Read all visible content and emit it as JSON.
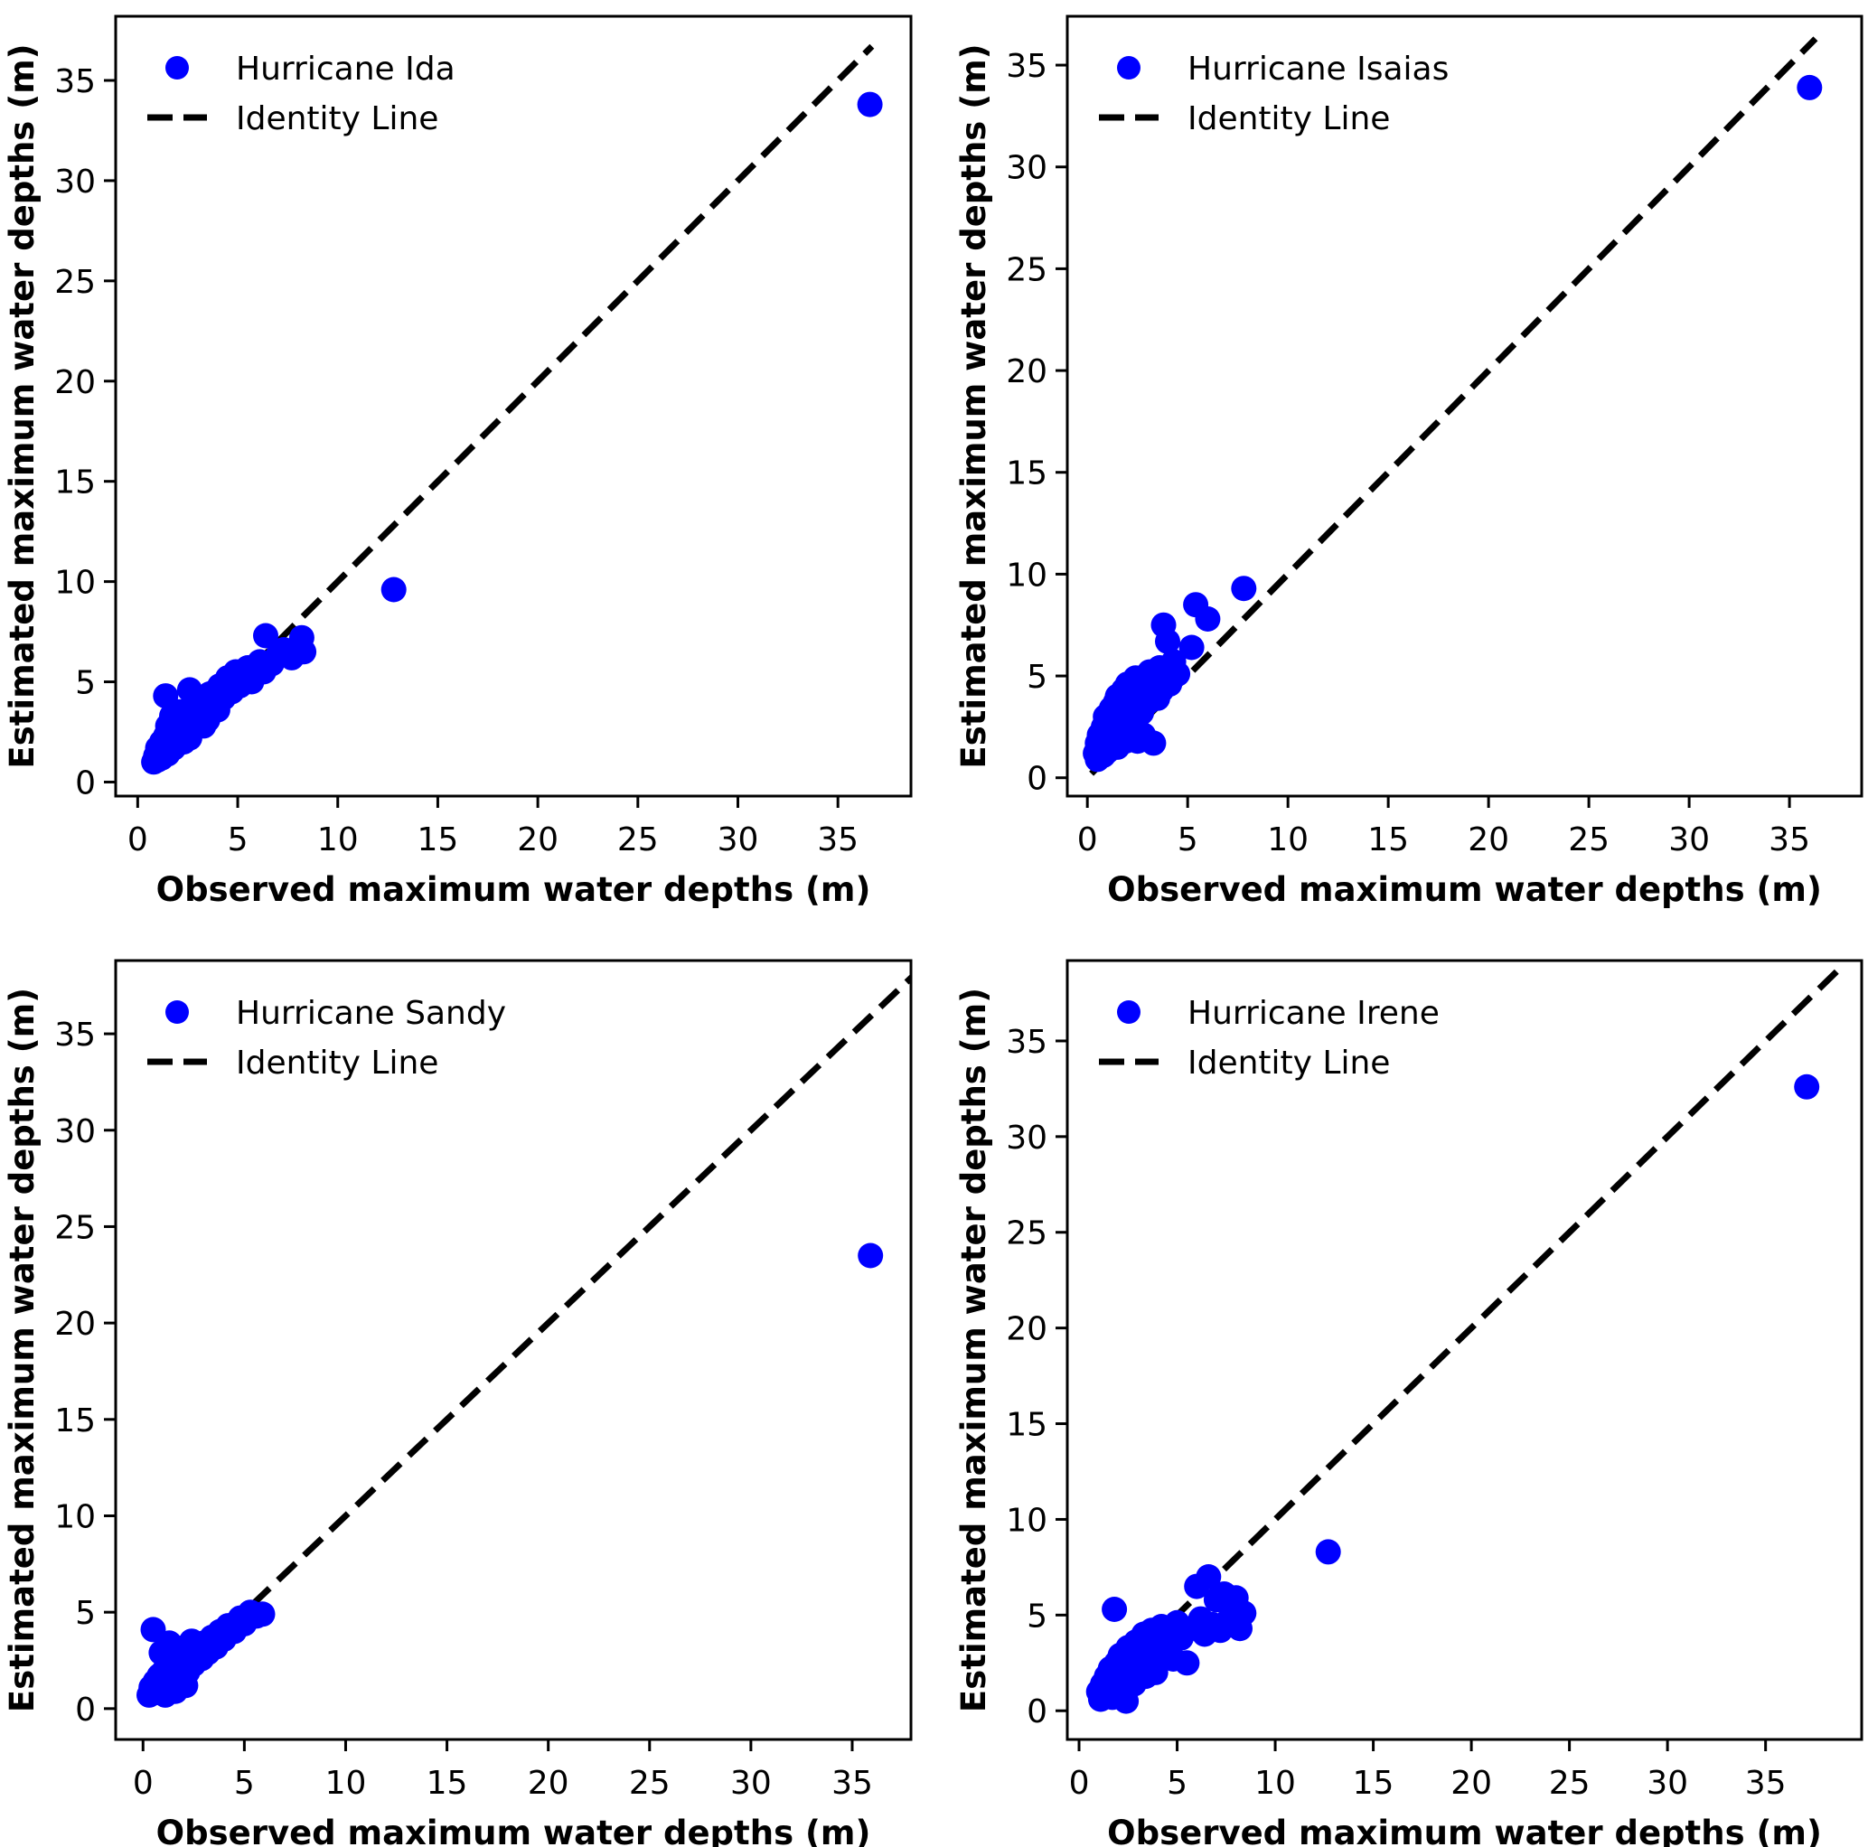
{
  "figure": {
    "background": "#ffffff",
    "marker_color": "#0000ff",
    "identity_color": "#000000",
    "xlabel": "Observed maximum water depths (m)",
    "ylabel": "Estimated maximum water depths (m)",
    "identity_label": "Identity Line"
  },
  "chart_data": [
    {
      "type": "scatter",
      "series_label": "Hurricane Ida",
      "identity_label": "Identity Line",
      "xlabel": "Observed maximum water depths (m)",
      "ylabel": "Estimated maximum water depths (m)",
      "marker_color": "#0000ff",
      "legend_position": "upper-left",
      "grid": false,
      "xlim": [
        -1.1,
        38.65
      ],
      "ylim": [
        -0.7,
        38.2
      ],
      "x_ticks": [
        0,
        5,
        10,
        15,
        20,
        25,
        30,
        35
      ],
      "y_ticks": [
        0,
        5,
        10,
        15,
        20,
        25,
        30,
        35
      ],
      "identity_span": [
        0.6,
        36.7
      ],
      "points": [
        [
          0.8,
          1.0
        ],
        [
          0.9,
          1.3
        ],
        [
          1.0,
          1.1
        ],
        [
          1.0,
          1.7
        ],
        [
          1.1,
          1.4
        ],
        [
          1.2,
          2.0
        ],
        [
          1.2,
          1.2
        ],
        [
          1.3,
          1.6
        ],
        [
          1.4,
          4.3
        ],
        [
          1.4,
          2.3
        ],
        [
          1.5,
          1.4
        ],
        [
          1.5,
          2.8
        ],
        [
          1.6,
          1.9
        ],
        [
          1.7,
          2.5
        ],
        [
          1.7,
          3.3
        ],
        [
          1.8,
          1.7
        ],
        [
          1.9,
          2.2
        ],
        [
          2.0,
          2.9
        ],
        [
          2.0,
          1.9
        ],
        [
          2.1,
          3.5
        ],
        [
          2.2,
          2.4
        ],
        [
          2.3,
          2.0
        ],
        [
          2.4,
          3.1
        ],
        [
          2.5,
          2.6
        ],
        [
          2.6,
          4.6
        ],
        [
          2.6,
          2.2
        ],
        [
          2.7,
          3.3
        ],
        [
          2.8,
          2.7
        ],
        [
          2.9,
          3.8
        ],
        [
          3.0,
          3.0
        ],
        [
          3.1,
          4.2
        ],
        [
          3.2,
          3.4
        ],
        [
          3.3,
          2.8
        ],
        [
          3.4,
          3.9
        ],
        [
          3.5,
          3.1
        ],
        [
          3.6,
          4.4
        ],
        [
          3.7,
          3.5
        ],
        [
          3.9,
          4.1
        ],
        [
          4.0,
          3.6
        ],
        [
          4.1,
          4.8
        ],
        [
          4.3,
          4.2
        ],
        [
          4.5,
          5.2
        ],
        [
          4.7,
          4.5
        ],
        [
          4.9,
          5.5
        ],
        [
          5.1,
          4.8
        ],
        [
          5.3,
          5.3
        ],
        [
          5.5,
          5.7
        ],
        [
          5.7,
          5.0
        ],
        [
          5.9,
          5.6
        ],
        [
          6.1,
          6.0
        ],
        [
          6.3,
          5.5
        ],
        [
          6.4,
          7.3
        ],
        [
          6.7,
          5.9
        ],
        [
          7.0,
          6.3
        ],
        [
          7.3,
          6.6
        ],
        [
          7.7,
          6.2
        ],
        [
          8.2,
          7.2
        ],
        [
          8.3,
          6.5
        ],
        [
          12.8,
          9.6
        ],
        [
          36.6,
          33.8
        ]
      ]
    },
    {
      "type": "scatter",
      "series_label": "Hurricane Isaias",
      "identity_label": "Identity Line",
      "xlabel": "Observed maximum water depths (m)",
      "ylabel": "Estimated maximum water depths (m)",
      "marker_color": "#0000ff",
      "legend_position": "upper-left",
      "grid": false,
      "xlim": [
        -1.0,
        38.6
      ],
      "ylim": [
        -0.9,
        37.4
      ],
      "x_ticks": [
        0,
        5,
        10,
        15,
        20,
        25,
        30,
        35
      ],
      "y_ticks": [
        0,
        5,
        10,
        15,
        20,
        25,
        30,
        35
      ],
      "identity_span": [
        0.2,
        36.3
      ],
      "points": [
        [
          0.4,
          1.2
        ],
        [
          0.5,
          0.9
        ],
        [
          0.5,
          1.7
        ],
        [
          0.6,
          2.1
        ],
        [
          0.7,
          1.4
        ],
        [
          0.8,
          2.5
        ],
        [
          0.8,
          1.1
        ],
        [
          0.9,
          1.9
        ],
        [
          0.9,
          3.0
        ],
        [
          1.0,
          2.3
        ],
        [
          1.0,
          1.3
        ],
        [
          1.1,
          2.8
        ],
        [
          1.2,
          3.4
        ],
        [
          1.2,
          1.7
        ],
        [
          1.3,
          2.1
        ],
        [
          1.4,
          3.7
        ],
        [
          1.4,
          2.6
        ],
        [
          1.5,
          1.5
        ],
        [
          1.5,
          4.0
        ],
        [
          1.6,
          3.0
        ],
        [
          1.7,
          2.4
        ],
        [
          1.7,
          3.5
        ],
        [
          1.8,
          4.3
        ],
        [
          1.9,
          2.8
        ],
        [
          1.9,
          1.8
        ],
        [
          2.0,
          3.2
        ],
        [
          2.0,
          4.6
        ],
        [
          2.1,
          2.5
        ],
        [
          2.2,
          3.9
        ],
        [
          2.3,
          3.0
        ],
        [
          2.4,
          4.9
        ],
        [
          2.5,
          3.5
        ],
        [
          2.5,
          1.8
        ],
        [
          2.6,
          4.2
        ],
        [
          2.7,
          3.2
        ],
        [
          2.8,
          2.1
        ],
        [
          2.9,
          4.5
        ],
        [
          3.0,
          3.7
        ],
        [
          3.1,
          5.2
        ],
        [
          3.2,
          4.1
        ],
        [
          3.3,
          1.7
        ],
        [
          3.4,
          4.7
        ],
        [
          3.5,
          3.9
        ],
        [
          3.6,
          5.4
        ],
        [
          3.7,
          4.3
        ],
        [
          3.8,
          7.5
        ],
        [
          3.9,
          5.0
        ],
        [
          4.0,
          6.7
        ],
        [
          4.1,
          4.6
        ],
        [
          4.3,
          5.7
        ],
        [
          4.5,
          5.1
        ],
        [
          5.2,
          6.4
        ],
        [
          5.4,
          8.5
        ],
        [
          6.0,
          7.8
        ],
        [
          7.8,
          9.3
        ],
        [
          36.0,
          33.9
        ]
      ]
    },
    {
      "type": "scatter",
      "series_label": "Hurricane Sandy",
      "identity_label": "Identity Line",
      "xlabel": "Observed maximum water depths (m)",
      "ylabel": "Estimated maximum water depths (m)",
      "marker_color": "#0000ff",
      "legend_position": "upper-left",
      "grid": false,
      "xlim": [
        -1.35,
        37.9
      ],
      "ylim": [
        -1.6,
        38.8
      ],
      "x_ticks": [
        0,
        5,
        10,
        15,
        20,
        25,
        30,
        35
      ],
      "y_ticks": [
        0,
        5,
        10,
        15,
        20,
        25,
        30,
        35
      ],
      "identity_span": [
        0.2,
        38.5
      ],
      "points": [
        [
          0.3,
          0.7
        ],
        [
          0.4,
          1.1
        ],
        [
          0.5,
          0.8
        ],
        [
          0.5,
          4.1
        ],
        [
          0.6,
          1.4
        ],
        [
          0.7,
          1.0
        ],
        [
          0.8,
          1.7
        ],
        [
          0.9,
          1.2
        ],
        [
          0.9,
          2.9
        ],
        [
          1.0,
          1.9
        ],
        [
          1.1,
          0.7
        ],
        [
          1.1,
          1.5
        ],
        [
          1.2,
          2.2
        ],
        [
          1.3,
          1.1
        ],
        [
          1.3,
          3.4
        ],
        [
          1.4,
          1.8
        ],
        [
          1.5,
          2.5
        ],
        [
          1.6,
          0.9
        ],
        [
          1.6,
          1.4
        ],
        [
          1.7,
          2.1
        ],
        [
          1.8,
          2.8
        ],
        [
          1.9,
          1.6
        ],
        [
          2.0,
          2.4
        ],
        [
          2.1,
          3.2
        ],
        [
          2.1,
          1.2
        ],
        [
          2.2,
          1.9
        ],
        [
          2.3,
          2.7
        ],
        [
          2.4,
          3.5
        ],
        [
          2.5,
          2.3
        ],
        [
          2.7,
          3.0
        ],
        [
          2.9,
          2.6
        ],
        [
          3.0,
          3.4
        ],
        [
          3.2,
          2.9
        ],
        [
          3.4,
          3.7
        ],
        [
          3.6,
          3.2
        ],
        [
          3.8,
          4.0
        ],
        [
          4.0,
          3.6
        ],
        [
          4.2,
          4.3
        ],
        [
          4.5,
          4.0
        ],
        [
          4.8,
          4.7
        ],
        [
          5.0,
          4.4
        ],
        [
          5.3,
          5.0
        ],
        [
          5.6,
          4.8
        ],
        [
          5.9,
          4.9
        ],
        [
          35.9,
          23.5
        ]
      ]
    },
    {
      "type": "scatter",
      "series_label": "Hurricane Irene",
      "identity_label": "Identity Line",
      "xlabel": "Observed maximum water depths (m)",
      "ylabel": "Estimated maximum water depths (m)",
      "marker_color": "#0000ff",
      "legend_position": "upper-left",
      "grid": false,
      "xlim": [
        -0.6,
        39.9
      ],
      "ylim": [
        -1.5,
        39.2
      ],
      "x_ticks": [
        0,
        5,
        10,
        15,
        20,
        25,
        30,
        35
      ],
      "y_ticks": [
        0,
        5,
        10,
        15,
        20,
        25,
        30,
        35
      ],
      "identity_span": [
        0.8,
        38.8
      ],
      "points": [
        [
          1.0,
          1.0
        ],
        [
          1.1,
          0.6
        ],
        [
          1.2,
          1.4
        ],
        [
          1.3,
          0.9
        ],
        [
          1.4,
          1.8
        ],
        [
          1.5,
          1.1
        ],
        [
          1.6,
          2.2
        ],
        [
          1.7,
          0.7
        ],
        [
          1.8,
          1.6
        ],
        [
          1.8,
          5.3
        ],
        [
          1.9,
          2.5
        ],
        [
          2.0,
          1.2
        ],
        [
          2.1,
          2.9
        ],
        [
          2.2,
          1.7
        ],
        [
          2.3,
          2.3
        ],
        [
          2.4,
          0.5
        ],
        [
          2.5,
          3.3
        ],
        [
          2.6,
          1.9
        ],
        [
          2.7,
          2.8
        ],
        [
          2.8,
          1.4
        ],
        [
          2.9,
          3.6
        ],
        [
          3.0,
          2.1
        ],
        [
          3.1,
          3.1
        ],
        [
          3.2,
          2.6
        ],
        [
          3.3,
          4.0
        ],
        [
          3.4,
          1.8
        ],
        [
          3.5,
          3.4
        ],
        [
          3.6,
          2.3
        ],
        [
          3.7,
          4.2
        ],
        [
          3.8,
          2.9
        ],
        [
          3.9,
          2.0
        ],
        [
          4.0,
          3.7
        ],
        [
          4.2,
          4.4
        ],
        [
          4.4,
          3.2
        ],
        [
          4.6,
          4.1
        ],
        [
          4.8,
          2.7
        ],
        [
          5.0,
          4.6
        ],
        [
          5.2,
          3.8
        ],
        [
          5.5,
          2.5
        ],
        [
          5.7,
          4.3
        ],
        [
          6.0,
          6.5
        ],
        [
          6.2,
          4.8
        ],
        [
          6.4,
          4.0
        ],
        [
          6.6,
          7.0
        ],
        [
          6.8,
          4.5
        ],
        [
          7.0,
          5.8
        ],
        [
          7.2,
          4.2
        ],
        [
          7.4,
          6.1
        ],
        [
          7.6,
          4.7
        ],
        [
          7.8,
          5.5
        ],
        [
          8.0,
          5.9
        ],
        [
          8.2,
          4.3
        ],
        [
          8.4,
          5.1
        ],
        [
          12.7,
          8.3
        ],
        [
          37.1,
          32.6
        ]
      ]
    }
  ]
}
